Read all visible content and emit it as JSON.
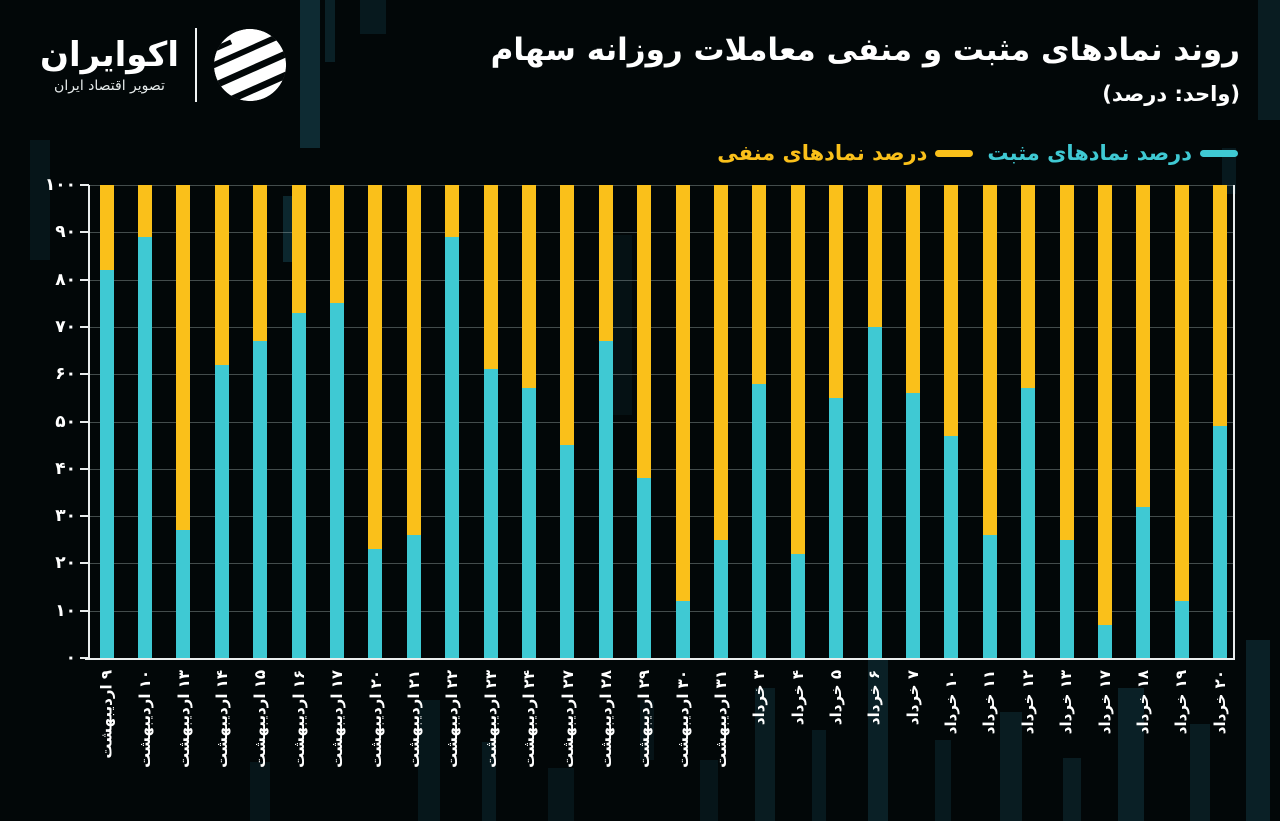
{
  "brand": {
    "name": "اکوایران",
    "tagline": "تصویر اقتصاد ایران"
  },
  "header": {
    "title": "روند نمادهای مثبت و منفی معاملات روزانه سهام",
    "subtitle": "(واحد: درصد)"
  },
  "legend": [
    {
      "label": "درصد نمادهای مثبت",
      "color": "#3FC9D3"
    },
    {
      "label": "درصد نمادهای منفی",
      "color": "#FAC01A"
    }
  ],
  "colors": {
    "positive": "#3FC9D3",
    "negative": "#FAC01A",
    "background": "#020708",
    "text": "#ffffff",
    "gridline": "#aebcbc",
    "axis": "#e9eded"
  },
  "chart_data": {
    "type": "bar",
    "stacked": true,
    "title": "روند نمادهای مثبت و منفی معاملات روزانه سهام",
    "unit_label": "(واحد: درصد)",
    "categories": [
      "۹ اردیبهشت",
      "۱۰ اردیبهشت",
      "۱۳ اردیبهشت",
      "۱۴ اردیبهشت",
      "۱۵ اردیبهشت",
      "۱۶ اردیبهشت",
      "۱۷ اردیبهشت",
      "۲۰ اردیبهشت",
      "۲۱ اردیبهشت",
      "۲۲ اردیبهشت",
      "۲۳ اردیبهشت",
      "۲۴ اردیبهشت",
      "۲۷ اردیبهشت",
      "۲۸ اردیبهشت",
      "۲۹ اردیبهشت",
      "۳۰ اردیبهشت",
      "۳۱ اردیبهشت",
      "۳ خرداد",
      "۴ خرداد",
      "۵ خرداد",
      "۶ خرداد",
      "۷ خرداد",
      "۱۰ خرداد",
      "۱۱ خرداد",
      "۱۲ خرداد",
      "۱۳ خرداد",
      "۱۷ خرداد",
      "۱۸ خرداد",
      "۱۹ خرداد",
      "۲۰ خرداد"
    ],
    "series": [
      {
        "name": "درصد نمادهای مثبت",
        "color": "#3FC9D3",
        "values": [
          82,
          89,
          27,
          62,
          67,
          73,
          75,
          23,
          26,
          89,
          61,
          57,
          45,
          67,
          38,
          12,
          25,
          58,
          22,
          55,
          70,
          56,
          47,
          26,
          57,
          25,
          7,
          32,
          12,
          49
        ]
      },
      {
        "name": "درصد نمادهای منفی",
        "color": "#FAC01A",
        "values": [
          18,
          11,
          73,
          38,
          33,
          27,
          25,
          77,
          74,
          11,
          39,
          43,
          55,
          33,
          62,
          88,
          75,
          42,
          78,
          45,
          30,
          44,
          53,
          74,
          43,
          75,
          93,
          68,
          88,
          51
        ]
      }
    ],
    "xlabel": "",
    "ylabel": "",
    "ylim": [
      0,
      100
    ],
    "yticks": [
      0,
      10,
      20,
      30,
      40,
      50,
      60,
      70,
      80,
      90,
      100
    ],
    "ytick_labels": [
      "۰",
      "۱۰",
      "۲۰",
      "۳۰",
      "۴۰",
      "۵۰",
      "۶۰",
      "۷۰",
      "۸۰",
      "۹۰",
      "۱۰۰"
    ],
    "grid": true,
    "legend_position": "top-right"
  }
}
